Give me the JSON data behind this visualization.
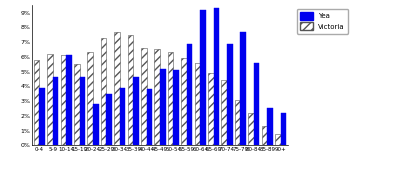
{
  "categories": [
    "0-4",
    "5-9",
    "10-14",
    "15-19",
    "20-24",
    "25-29",
    "30-34",
    "35-39",
    "40-44",
    "45-49",
    "50-54",
    "55-59",
    "60-64",
    "65-69",
    "70-74",
    "75-79",
    "80-84",
    "85-89",
    "90+"
  ],
  "yea": [
    3.9,
    4.6,
    6.1,
    4.6,
    2.8,
    3.5,
    3.9,
    4.6,
    3.8,
    5.2,
    5.1,
    6.9,
    9.2,
    9.3,
    6.9,
    7.7,
    5.6,
    2.5,
    2.2
  ],
  "victoria": [
    5.8,
    6.2,
    6.1,
    5.5,
    6.3,
    7.3,
    7.7,
    7.5,
    6.6,
    6.5,
    6.3,
    5.9,
    5.6,
    4.9,
    4.4,
    3.1,
    2.2,
    1.3,
    0.8
  ],
  "yea_color": "#0000ee",
  "ylim": [
    0,
    9.5
  ],
  "yticks": [
    0,
    1,
    2,
    3,
    4,
    5,
    6,
    7,
    8,
    9
  ],
  "bg_color": "#ffffff",
  "hatch_color": "#555555",
  "hatch_pattern": "////"
}
